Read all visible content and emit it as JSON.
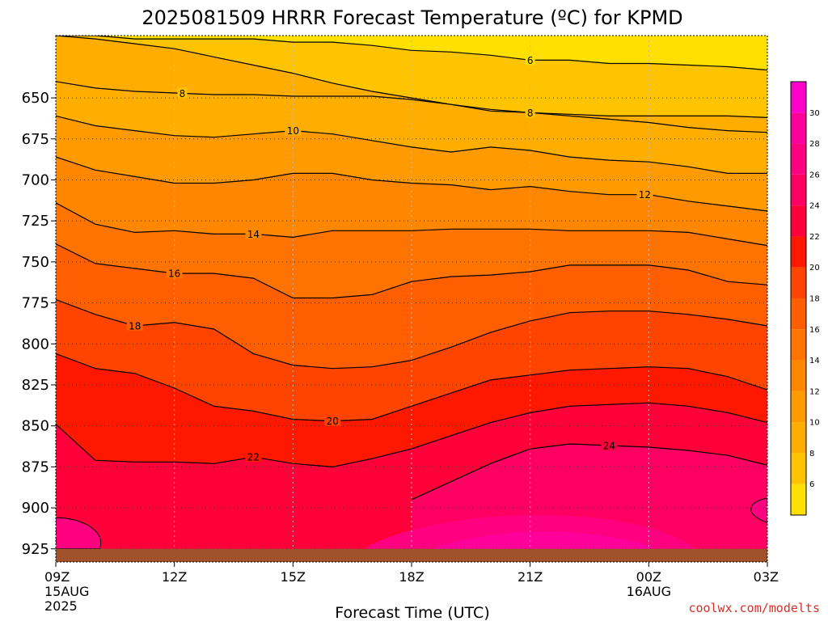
{
  "chart_data": {
    "type": "heatmap",
    "title": "2025081509 HRRR Forecast Temperature (ºC) for KPMD",
    "xlabel": "Forecast Time (UTC)",
    "ylabel": "",
    "credit": "coolwx.com/modelts",
    "x_ticks": [
      {
        "hour": 0,
        "label": "09Z",
        "date": "15AUG",
        "year": "2025"
      },
      {
        "hour": 3,
        "label": "12Z"
      },
      {
        "hour": 6,
        "label": "15Z"
      },
      {
        "hour": 9,
        "label": "18Z"
      },
      {
        "hour": 12,
        "label": "21Z"
      },
      {
        "hour": 15,
        "label": "00Z",
        "date": "16AUG"
      },
      {
        "hour": 18,
        "label": "03Z"
      }
    ],
    "xlim": [
      0,
      18
    ],
    "y_ticks": [
      650,
      675,
      700,
      725,
      750,
      775,
      800,
      825,
      850,
      875,
      900,
      925
    ],
    "ylim": [
      612,
      933
    ],
    "y_inverted": true,
    "surface_pressure": 925,
    "colorbar": {
      "tick_labels": [
        "6",
        "8",
        "10",
        "12",
        "14",
        "16",
        "18",
        "20",
        "22",
        "24",
        "26",
        "28",
        "30"
      ],
      "bounds": [
        4,
        6,
        8,
        10,
        12,
        14,
        16,
        18,
        20,
        22,
        24,
        26,
        28,
        30,
        32
      ],
      "colors": [
        "#ffe000",
        "#ffc400",
        "#ffae00",
        "#ff9a00",
        "#ff8700",
        "#ff7300",
        "#ff5f00",
        "#ff4400",
        "#ff1800",
        "#ff003a",
        "#ff0062",
        "#ff0080",
        "#ff009a",
        "#ff00cc"
      ]
    },
    "isotherms": [
      {
        "value": 6,
        "label": "6",
        "label_hour": 12.0,
        "p": [
          612,
          612,
          614,
          614,
          614,
          614,
          616,
          616,
          618,
          621,
          622,
          624,
          627,
          627,
          629,
          629,
          630,
          631,
          633
        ]
      },
      {
        "value": 8,
        "label": "8",
        "label_hour": 3.2,
        "p": [
          640,
          644,
          646,
          647,
          648,
          648,
          649,
          649,
          649,
          651,
          654,
          658,
          659,
          661,
          663,
          665,
          668,
          670,
          671
        ]
      },
      {
        "value": 8,
        "label": "8",
        "label_hour": 12.0,
        "p": [
          612,
          614,
          617,
          620,
          625,
          630,
          635,
          641,
          646,
          650,
          654,
          657,
          659,
          660,
          661,
          661,
          661,
          661,
          662
        ]
      },
      {
        "value": 10,
        "label": "10",
        "label_hour": 6.0,
        "p": [
          661,
          667,
          670,
          673,
          674,
          672,
          670,
          672,
          676,
          680,
          683,
          680,
          682,
          686,
          688,
          689,
          692,
          696,
          696
        ]
      },
      {
        "value": 12,
        "label": "12",
        "label_hour": 14.9,
        "p": [
          686,
          694,
          698,
          702,
          702,
          700,
          696,
          696,
          700,
          702,
          703,
          706,
          704,
          707,
          709,
          709,
          713,
          716,
          719
        ]
      },
      {
        "value": 14,
        "label": "14",
        "label_hour": 5.0,
        "p": [
          714,
          727,
          732,
          731,
          733,
          733,
          735,
          731,
          731,
          731,
          730,
          730,
          730,
          731,
          731,
          731,
          732,
          736,
          740
        ]
      },
      {
        "value": 16,
        "label": "16",
        "label_hour": 3.0,
        "p": [
          739,
          751,
          754,
          757,
          757,
          760,
          772,
          772,
          770,
          762,
          759,
          758,
          756,
          752,
          752,
          752,
          755,
          762,
          764
        ]
      },
      {
        "value": 18,
        "label": "18",
        "label_hour": 2.0,
        "p": [
          773,
          782,
          789,
          787,
          791,
          806,
          813,
          815,
          814,
          810,
          802,
          793,
          786,
          781,
          780,
          780,
          782,
          785,
          789
        ]
      },
      {
        "value": 20,
        "label": "20",
        "label_hour": 7.0,
        "p": [
          806,
          815,
          818,
          827,
          838,
          841,
          846,
          847,
          846,
          838,
          830,
          822,
          819,
          816,
          815,
          814,
          815,
          820,
          828
        ]
      },
      {
        "value": 22,
        "label": "22",
        "label_hour": 5.0,
        "p": [
          849,
          871,
          872,
          872,
          873,
          869,
          873,
          875,
          870,
          864,
          856,
          848,
          842,
          838,
          837,
          836,
          838,
          842,
          848
        ]
      },
      {
        "value": 24,
        "label": "24",
        "label_hour": 14.0,
        "p": [
          null,
          null,
          null,
          null,
          null,
          null,
          null,
          null,
          null,
          895,
          884,
          873,
          864,
          861,
          862,
          863,
          865,
          868,
          874
        ]
      }
    ]
  }
}
